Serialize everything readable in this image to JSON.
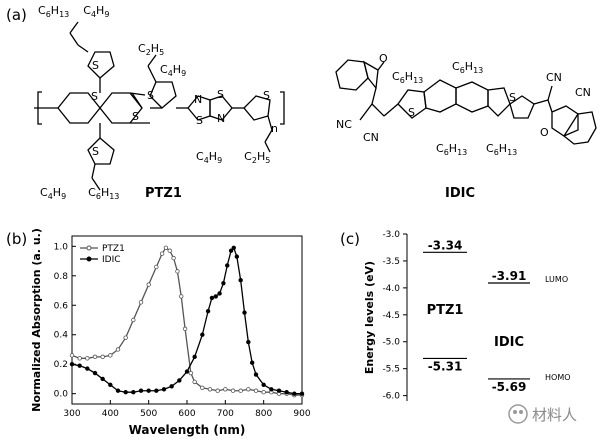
{
  "panels": {
    "a": "(a)",
    "b": "(b)",
    "c": "(c)"
  },
  "molecules": {
    "ptz1": {
      "name": "PTZ1",
      "repeat": "n",
      "atom_S": "S",
      "atom_N": "N",
      "top_chain": [
        "C",
        "6",
        "H",
        "13",
        "C",
        "4",
        "H",
        "9"
      ],
      "upper_chain": [
        "C",
        "2",
        "H",
        "5",
        "C",
        "4",
        "H",
        "9"
      ],
      "lower_chain": [
        "C",
        "4",
        "H",
        "9",
        "C",
        "6",
        "H",
        "13"
      ],
      "right_chain": [
        "C",
        "4",
        "H",
        "9",
        "C",
        "2",
        "H",
        "5"
      ]
    },
    "idic": {
      "name": "IDIC",
      "atom_O": "O",
      "atom_S": "S",
      "nitrile": "NC",
      "nitrile_r": "CN",
      "hexyl": [
        "C",
        "6",
        "H",
        "13"
      ]
    }
  },
  "chart_absorption": {
    "type": "line",
    "xlabel": "Wavelength (nm)",
    "ylabel": "Normalized Absorption (a. u.)",
    "xlim": [
      300,
      900
    ],
    "ylim": [
      -0.07,
      1.07
    ],
    "xticks": [
      "300",
      "400",
      "500",
      "600",
      "700",
      "800",
      "900"
    ],
    "yticks": [
      "0.0",
      "0.2",
      "0.4",
      "0.6",
      "0.8",
      "1.0"
    ],
    "legend_position": "top-left",
    "series": [
      {
        "name": "PTZ1",
        "marker": "open-circle",
        "color": "#555555",
        "x": [
          300,
          320,
          340,
          360,
          380,
          400,
          420,
          440,
          460,
          480,
          500,
          520,
          535,
          545,
          555,
          565,
          575,
          585,
          595,
          610,
          620,
          640,
          660,
          680,
          700,
          720,
          740,
          760,
          780,
          800,
          820,
          840,
          860,
          880,
          900
        ],
        "y": [
          0.26,
          0.24,
          0.24,
          0.25,
          0.25,
          0.26,
          0.3,
          0.38,
          0.5,
          0.62,
          0.74,
          0.86,
          0.95,
          0.99,
          0.97,
          0.92,
          0.83,
          0.66,
          0.44,
          0.14,
          0.08,
          0.04,
          0.03,
          0.02,
          0.03,
          0.02,
          0.02,
          0.03,
          0.02,
          0.01,
          0.01,
          0.0,
          0.0,
          -0.01,
          -0.01
        ]
      },
      {
        "name": "IDIC",
        "marker": "filled-circle",
        "color": "#000000",
        "x": [
          300,
          320,
          340,
          360,
          380,
          400,
          420,
          440,
          460,
          480,
          500,
          520,
          540,
          560,
          580,
          600,
          620,
          640,
          655,
          665,
          675,
          685,
          695,
          705,
          715,
          722,
          730,
          740,
          750,
          760,
          770,
          780,
          800,
          820,
          840,
          860,
          880,
          900
        ],
        "y": [
          0.2,
          0.19,
          0.17,
          0.14,
          0.1,
          0.06,
          0.02,
          0.01,
          0.01,
          0.02,
          0.02,
          0.02,
          0.03,
          0.05,
          0.09,
          0.15,
          0.25,
          0.4,
          0.56,
          0.65,
          0.66,
          0.68,
          0.75,
          0.87,
          0.97,
          0.99,
          0.93,
          0.77,
          0.55,
          0.35,
          0.21,
          0.13,
          0.06,
          0.03,
          0.02,
          0.01,
          0.0,
          0.0
        ]
      }
    ]
  },
  "chart_energy": {
    "type": "level-diagram",
    "ylabel": "Energy levels (eV)",
    "ylim": [
      -6.1,
      -3.0
    ],
    "yticks": [
      "-3.0",
      "-3.5",
      "-4.0",
      "-4.5",
      "-5.0",
      "-5.5",
      "-6.0"
    ],
    "label_lumo": "LUMO",
    "label_homo": "HOMO",
    "levels": [
      {
        "material": "PTZ1",
        "lumo": -3.34,
        "homo": -5.31,
        "lumo_text": "-3.34",
        "homo_text": "-5.31"
      },
      {
        "material": "IDIC",
        "lumo": -3.91,
        "homo": -5.69,
        "lumo_text": "-3.91",
        "homo_text": "-5.69"
      }
    ]
  },
  "watermark": "材料人"
}
